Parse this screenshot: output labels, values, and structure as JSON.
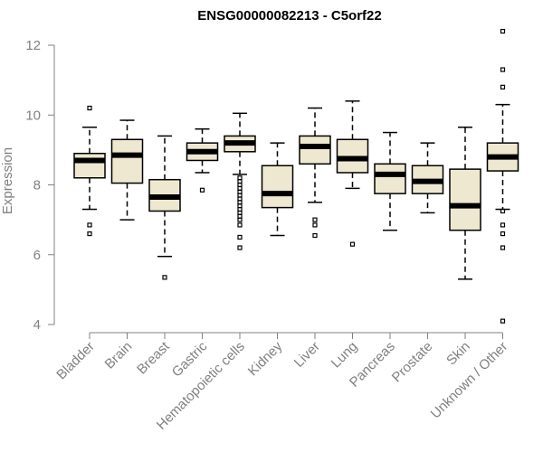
{
  "chart_data": {
    "type": "boxplot",
    "title": "ENSG00000082213 - C5orf22",
    "ylabel": "Expression",
    "xlabel": "",
    "ylim": [
      4,
      12.3
    ],
    "yticks": [
      4,
      6,
      8,
      10,
      12
    ],
    "grid": false,
    "colors": {
      "box_fill": "#EEE8D0",
      "stroke": "#000000",
      "axis": "#808080"
    },
    "categories": [
      "Bladder",
      "Brain",
      "Breast",
      "Gastric",
      "Hematopoietic cells",
      "Kidney",
      "Liver",
      "Lung",
      "Pancreas",
      "Prostate",
      "Skin",
      "Unknown / Other"
    ],
    "boxes": [
      {
        "whisker_low": 7.3,
        "q1": 8.2,
        "median": 8.7,
        "q3": 8.9,
        "whisker_high": 9.65,
        "outliers": [
          6.85,
          6.6,
          10.2
        ]
      },
      {
        "whisker_low": 7.0,
        "q1": 8.05,
        "median": 8.85,
        "q3": 9.3,
        "whisker_high": 9.85,
        "outliers": []
      },
      {
        "whisker_low": 5.95,
        "q1": 7.25,
        "median": 7.65,
        "q3": 8.15,
        "whisker_high": 9.4,
        "outliers": [
          5.35
        ]
      },
      {
        "whisker_low": 8.35,
        "q1": 8.7,
        "median": 8.95,
        "q3": 9.2,
        "whisker_high": 9.6,
        "outliers": [
          7.85
        ]
      },
      {
        "whisker_low": 8.3,
        "q1": 8.95,
        "median": 9.2,
        "q3": 9.4,
        "whisker_high": 10.05,
        "outliers": [
          8.2,
          8.1,
          8.0,
          7.9,
          7.8,
          7.7,
          7.6,
          7.5,
          7.4,
          7.3,
          7.2,
          7.1,
          7.0,
          6.85,
          6.5,
          6.2
        ]
      },
      {
        "whisker_low": 6.55,
        "q1": 7.35,
        "median": 7.75,
        "q3": 8.55,
        "whisker_high": 9.2,
        "outliers": []
      },
      {
        "whisker_low": 7.5,
        "q1": 8.6,
        "median": 9.1,
        "q3": 9.4,
        "whisker_high": 10.2,
        "outliers": [
          7.0,
          6.85,
          6.55
        ]
      },
      {
        "whisker_low": 7.9,
        "q1": 8.35,
        "median": 8.75,
        "q3": 9.3,
        "whisker_high": 10.4,
        "outliers": [
          6.3
        ]
      },
      {
        "whisker_low": 6.7,
        "q1": 7.75,
        "median": 8.3,
        "q3": 8.6,
        "whisker_high": 9.5,
        "outliers": []
      },
      {
        "whisker_low": 7.2,
        "q1": 7.75,
        "median": 8.1,
        "q3": 8.55,
        "whisker_high": 9.2,
        "outliers": []
      },
      {
        "whisker_low": 5.3,
        "q1": 6.7,
        "median": 7.4,
        "q3": 8.45,
        "whisker_high": 9.65,
        "outliers": []
      },
      {
        "whisker_low": 7.3,
        "q1": 8.4,
        "median": 8.8,
        "q3": 9.2,
        "whisker_high": 10.3,
        "outliers": [
          12.4,
          11.3,
          10.8,
          7.25,
          6.85,
          6.6,
          6.2,
          4.1
        ]
      }
    ]
  }
}
